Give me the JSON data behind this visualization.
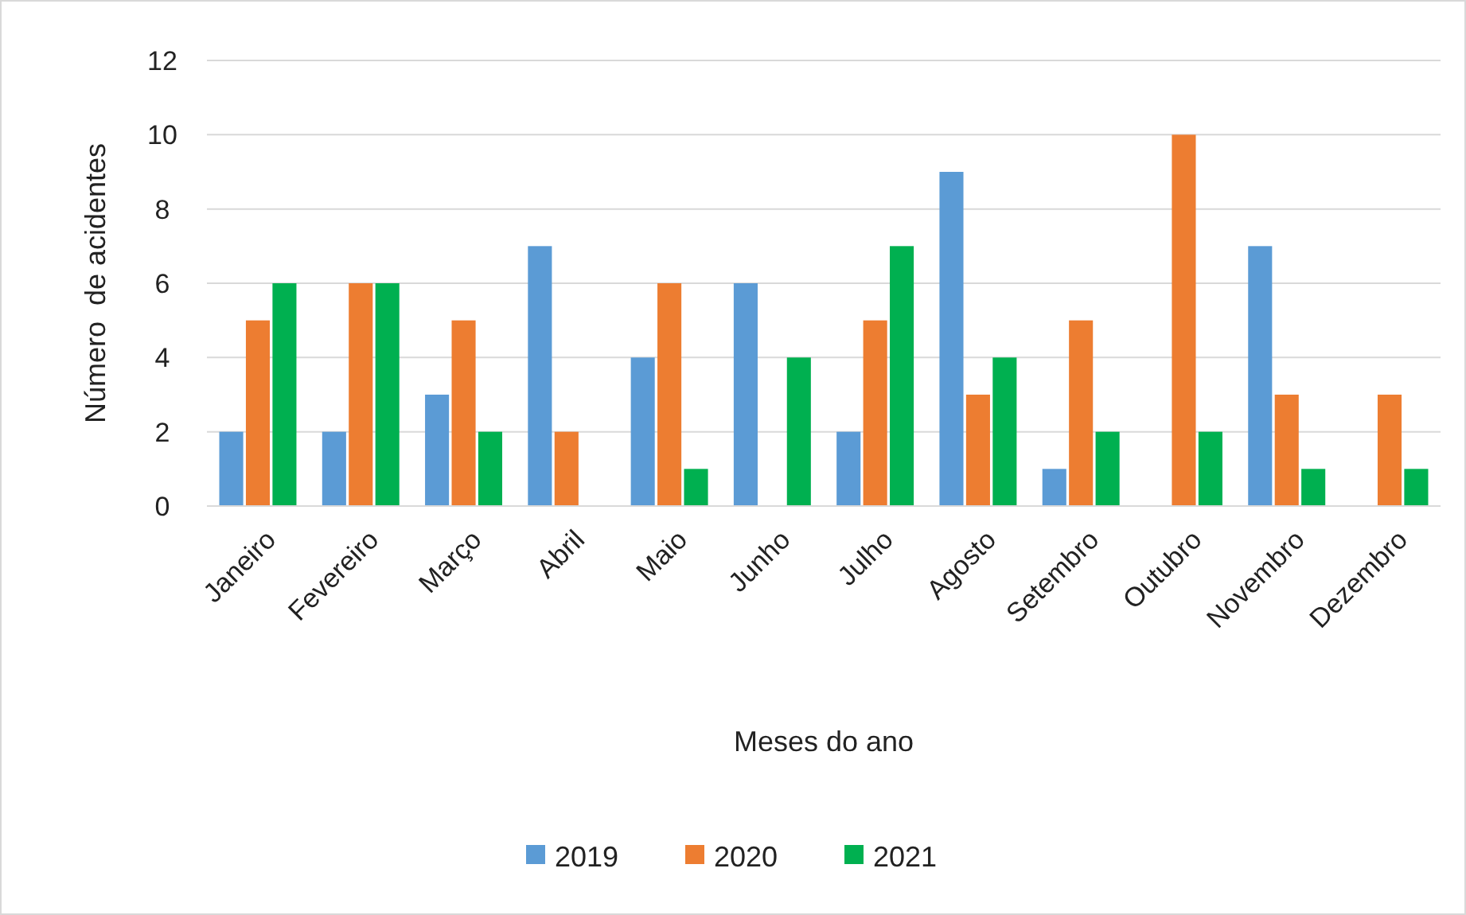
{
  "chart_data": {
    "type": "bar",
    "xlabel": "Meses do ano",
    "ylabel": "Número  de acidentes",
    "categories": [
      "Janeiro",
      "Fevereiro",
      "Março",
      "Abril",
      "Maio",
      "Junho",
      "Julho",
      "Agosto",
      "Setembro",
      "Outubro",
      "Novembro",
      "Dezembro"
    ],
    "series": [
      {
        "name": "2019",
        "color": "#5b9bd5",
        "values": [
          2,
          2,
          3,
          7,
          4,
          6,
          2,
          9,
          1,
          0,
          7,
          0
        ]
      },
      {
        "name": "2020",
        "color": "#ed7d31",
        "values": [
          5,
          6,
          5,
          2,
          6,
          0,
          5,
          3,
          5,
          10,
          3,
          3
        ]
      },
      {
        "name": "2021",
        "color": "#00b050",
        "values": [
          6,
          6,
          2,
          0,
          1,
          4,
          7,
          4,
          2,
          2,
          1,
          1
        ]
      }
    ],
    "ylim": [
      0,
      12
    ],
    "yticks": [
      0,
      2,
      4,
      6,
      8,
      10,
      12
    ],
    "grid": "y",
    "legend": "bottom"
  }
}
